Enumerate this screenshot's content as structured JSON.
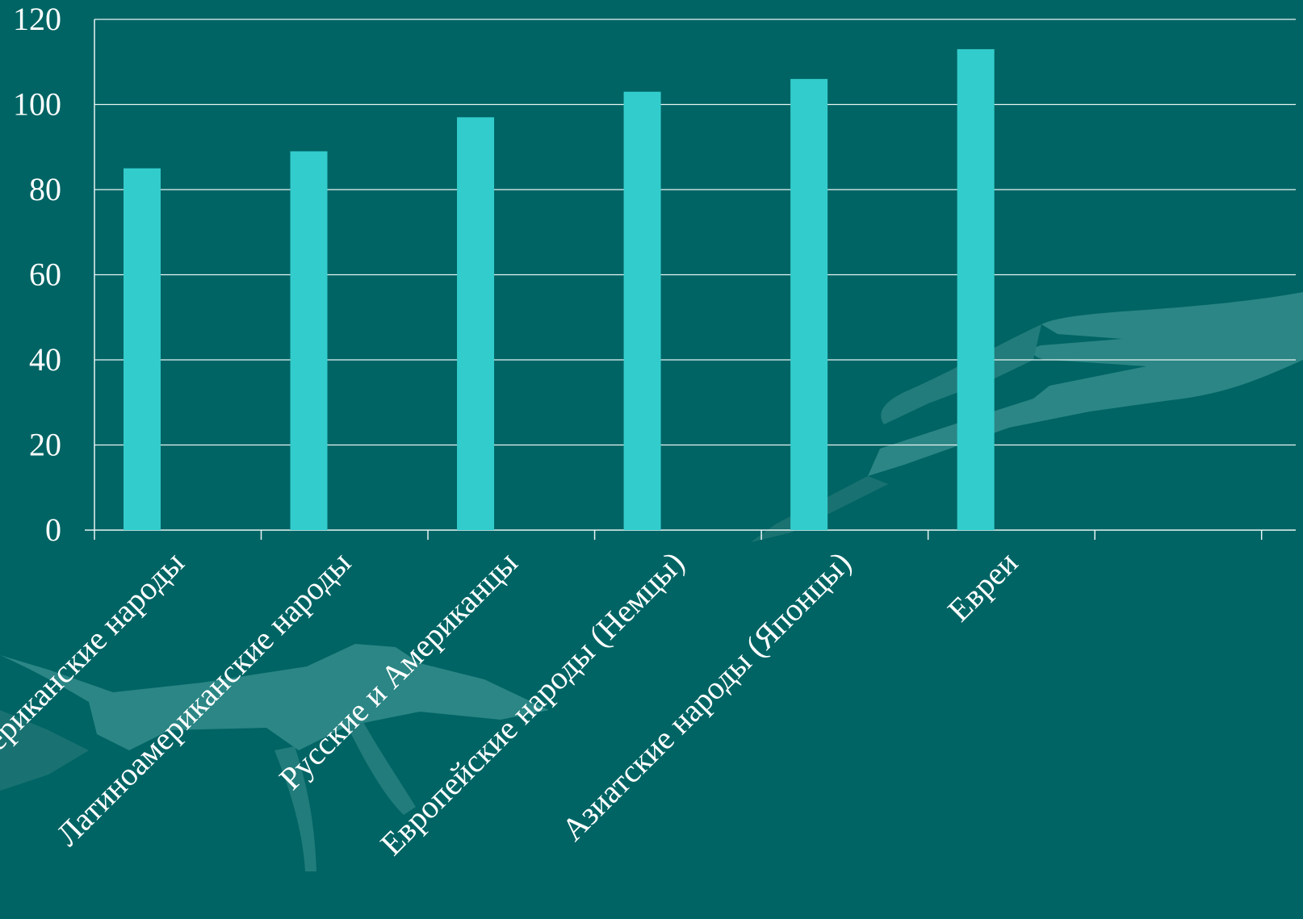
{
  "colors": {
    "background": "#006464",
    "bar": "#33CCCC",
    "gridline": "#e8f4f4",
    "text": "#ffffff",
    "decoration": "#4fa3a0"
  },
  "decoration": "hands-reaching-image",
  "chart_data": {
    "type": "bar",
    "categories": [
      "Афроамериканские народы",
      "Латиноамериканские народы",
      "Русские и Американцы",
      "Европейские народы (Немцы)",
      "Азиатские народы (Японцы)",
      "Евреи"
    ],
    "values": [
      85,
      89,
      97,
      103,
      106,
      113
    ],
    "ylim": [
      0,
      120
    ],
    "yticks": [
      0,
      20,
      40,
      60,
      80,
      100,
      120
    ],
    "title": "",
    "xlabel": "",
    "ylabel": "",
    "grid": true,
    "legend": "none"
  }
}
